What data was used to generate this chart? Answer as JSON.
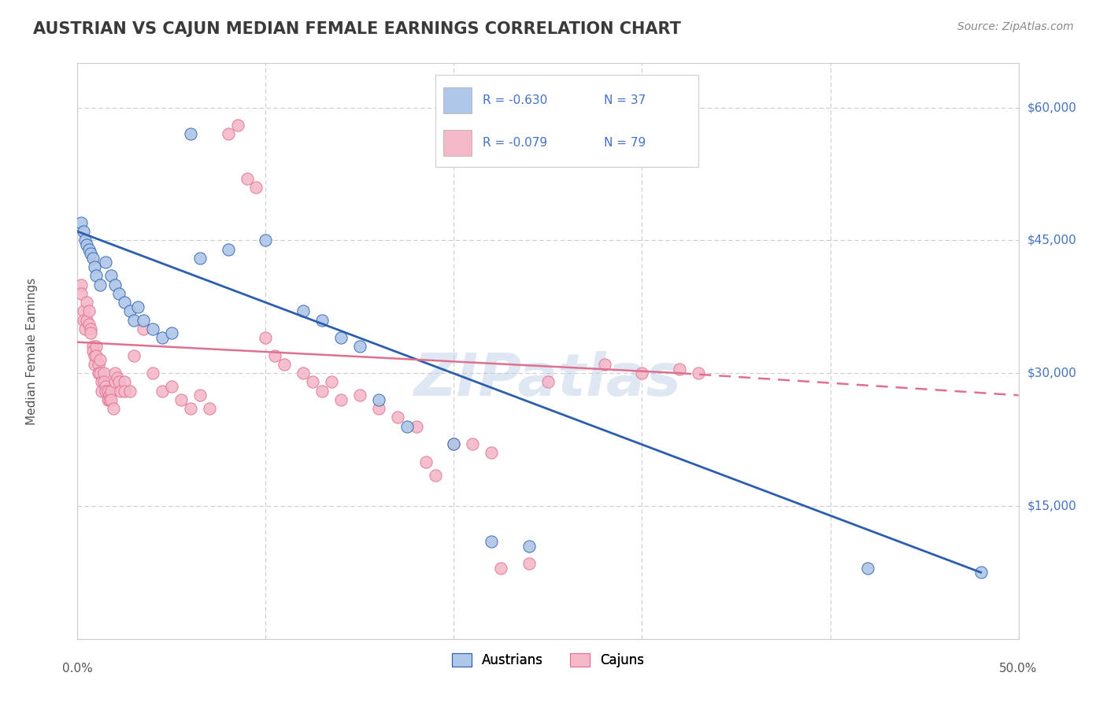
{
  "title": "AUSTRIAN VS CAJUN MEDIAN FEMALE EARNINGS CORRELATION CHART",
  "source": "Source: ZipAtlas.com",
  "ylabel": "Median Female Earnings",
  "xlim": [
    0.0,
    0.5
  ],
  "ylim": [
    0,
    65000
  ],
  "yticks": [
    0,
    15000,
    30000,
    45000,
    60000
  ],
  "background_color": "#ffffff",
  "grid_color": "#cccccc",
  "title_color": "#3a3a3a",
  "axis_label_color": "#4472c4",
  "watermark": "ZIPatlas",
  "austrian_color": "#aec6e8",
  "cajun_color": "#f4b8c8",
  "austrian_line_color": "#2b5fad",
  "cajun_line_color": "#e07090",
  "legend_label1": "Austrians",
  "legend_label2": "Cajuns",
  "austrian_points": [
    [
      0.002,
      47000
    ],
    [
      0.003,
      46000
    ],
    [
      0.004,
      45000
    ],
    [
      0.005,
      44500
    ],
    [
      0.006,
      44000
    ],
    [
      0.007,
      43500
    ],
    [
      0.008,
      43000
    ],
    [
      0.009,
      42000
    ],
    [
      0.01,
      41000
    ],
    [
      0.012,
      40000
    ],
    [
      0.015,
      42500
    ],
    [
      0.018,
      41000
    ],
    [
      0.02,
      40000
    ],
    [
      0.022,
      39000
    ],
    [
      0.025,
      38000
    ],
    [
      0.028,
      37000
    ],
    [
      0.03,
      36000
    ],
    [
      0.032,
      37500
    ],
    [
      0.035,
      36000
    ],
    [
      0.04,
      35000
    ],
    [
      0.045,
      34000
    ],
    [
      0.05,
      34500
    ],
    [
      0.06,
      57000
    ],
    [
      0.065,
      43000
    ],
    [
      0.08,
      44000
    ],
    [
      0.1,
      45000
    ],
    [
      0.12,
      37000
    ],
    [
      0.13,
      36000
    ],
    [
      0.14,
      34000
    ],
    [
      0.15,
      33000
    ],
    [
      0.16,
      27000
    ],
    [
      0.175,
      24000
    ],
    [
      0.2,
      22000
    ],
    [
      0.22,
      11000
    ],
    [
      0.24,
      10500
    ],
    [
      0.42,
      8000
    ],
    [
      0.48,
      7500
    ]
  ],
  "cajun_points": [
    [
      0.002,
      40000
    ],
    [
      0.002,
      39000
    ],
    [
      0.003,
      37000
    ],
    [
      0.003,
      36000
    ],
    [
      0.004,
      35000
    ],
    [
      0.005,
      38000
    ],
    [
      0.005,
      36000
    ],
    [
      0.006,
      37000
    ],
    [
      0.006,
      35500
    ],
    [
      0.007,
      35000
    ],
    [
      0.007,
      34500
    ],
    [
      0.008,
      33000
    ],
    [
      0.008,
      32500
    ],
    [
      0.009,
      32000
    ],
    [
      0.009,
      31000
    ],
    [
      0.01,
      33000
    ],
    [
      0.01,
      32000
    ],
    [
      0.011,
      31000
    ],
    [
      0.011,
      30000
    ],
    [
      0.012,
      31500
    ],
    [
      0.012,
      30000
    ],
    [
      0.013,
      29000
    ],
    [
      0.013,
      28000
    ],
    [
      0.014,
      30000
    ],
    [
      0.014,
      29000
    ],
    [
      0.015,
      28500
    ],
    [
      0.015,
      28000
    ],
    [
      0.016,
      28000
    ],
    [
      0.016,
      27000
    ],
    [
      0.017,
      27500
    ],
    [
      0.017,
      27000
    ],
    [
      0.018,
      28000
    ],
    [
      0.018,
      27000
    ],
    [
      0.019,
      26000
    ],
    [
      0.02,
      30000
    ],
    [
      0.02,
      29000
    ],
    [
      0.021,
      29500
    ],
    [
      0.022,
      29000
    ],
    [
      0.023,
      28000
    ],
    [
      0.025,
      29000
    ],
    [
      0.025,
      28000
    ],
    [
      0.028,
      28000
    ],
    [
      0.03,
      32000
    ],
    [
      0.035,
      35000
    ],
    [
      0.04,
      30000
    ],
    [
      0.045,
      28000
    ],
    [
      0.05,
      28500
    ],
    [
      0.055,
      27000
    ],
    [
      0.06,
      26000
    ],
    [
      0.065,
      27500
    ],
    [
      0.07,
      26000
    ],
    [
      0.08,
      57000
    ],
    [
      0.085,
      58000
    ],
    [
      0.09,
      52000
    ],
    [
      0.095,
      51000
    ],
    [
      0.1,
      34000
    ],
    [
      0.105,
      32000
    ],
    [
      0.11,
      31000
    ],
    [
      0.12,
      30000
    ],
    [
      0.125,
      29000
    ],
    [
      0.13,
      28000
    ],
    [
      0.135,
      29000
    ],
    [
      0.14,
      27000
    ],
    [
      0.15,
      27500
    ],
    [
      0.16,
      26000
    ],
    [
      0.17,
      25000
    ],
    [
      0.18,
      24000
    ],
    [
      0.185,
      20000
    ],
    [
      0.19,
      18500
    ],
    [
      0.2,
      22000
    ],
    [
      0.21,
      22000
    ],
    [
      0.22,
      21000
    ],
    [
      0.225,
      8000
    ],
    [
      0.24,
      8500
    ],
    [
      0.25,
      29000
    ],
    [
      0.28,
      31000
    ],
    [
      0.3,
      30000
    ],
    [
      0.32,
      30500
    ],
    [
      0.33,
      30000
    ]
  ],
  "austrian_trendline": [
    [
      0.0,
      46000
    ],
    [
      0.48,
      7500
    ]
  ],
  "cajun_trendline_solid": [
    [
      0.0,
      33500
    ],
    [
      0.32,
      30000
    ]
  ],
  "cajun_trendline_dashed": [
    [
      0.32,
      30000
    ],
    [
      0.5,
      27500
    ]
  ]
}
